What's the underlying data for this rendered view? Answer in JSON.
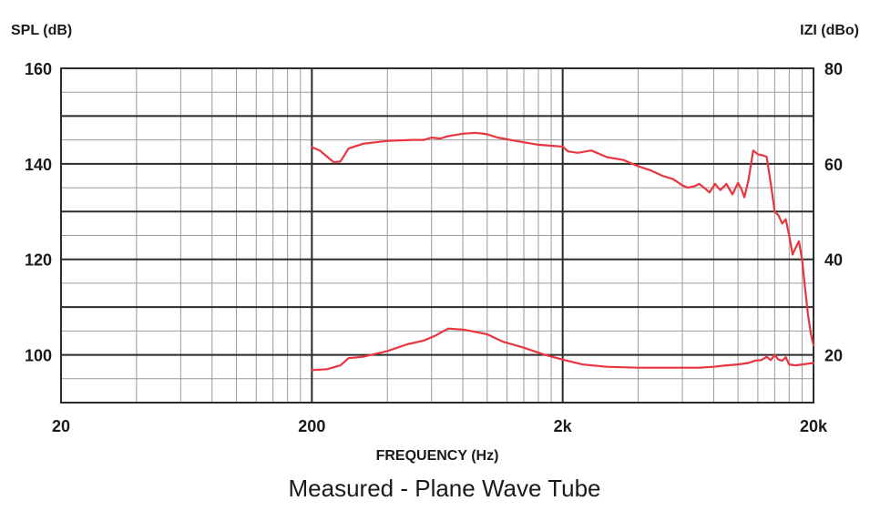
{
  "chart_data": {
    "type": "line",
    "title": "",
    "caption": "Measured - Plane Wave Tube",
    "xlabel": "FREQUENCY (Hz)",
    "ylabel_left": "SPL (dB)",
    "ylabel_right": "IZI (dBo)",
    "x_scale": "log",
    "xlim": [
      20,
      20000
    ],
    "ylim_left": [
      90,
      160
    ],
    "ylim_right": [
      10,
      80
    ],
    "x_ticks": [
      {
        "value": 20,
        "label": "20"
      },
      {
        "value": 200,
        "label": "200"
      },
      {
        "value": 2000,
        "label": "2k"
      },
      {
        "value": 20000,
        "label": "20k"
      }
    ],
    "y_ticks_left": [
      {
        "value": 160,
        "label": "160"
      },
      {
        "value": 140,
        "label": "140"
      },
      {
        "value": 120,
        "label": "120"
      },
      {
        "value": 100,
        "label": "100"
      }
    ],
    "y_ticks_right": [
      {
        "value": 80,
        "label": "80"
      },
      {
        "value": 60,
        "label": "60"
      },
      {
        "value": 40,
        "label": "40"
      },
      {
        "value": 20,
        "label": "20"
      }
    ],
    "grid": true,
    "line_color": "#e8353f",
    "series": [
      {
        "axis": "left",
        "x": [
          200,
          215,
          230,
          245,
          260,
          280,
          320,
          400,
          500,
          560,
          600,
          650,
          700,
          800,
          900,
          1000,
          1100,
          1300,
          1600,
          2000,
          2100,
          2300,
          2600,
          3000,
          3500,
          4000,
          4500,
          5000,
          5500,
          6000,
          6300,
          6700,
          7000,
          7400,
          7700,
          8100,
          8500,
          9000,
          9500,
          10000,
          10300,
          10600,
          11000,
          11500,
          12000,
          12500,
          13000,
          13500,
          14000,
          14500,
          15000,
          15500,
          16000,
          16500,
          17000,
          17500,
          18000,
          18500,
          19000,
          19500,
          20000
        ],
        "y": [
          143.5,
          142.8,
          141.5,
          140.3,
          140.5,
          143.2,
          144.2,
          144.8,
          145.0,
          145.0,
          145.5,
          145.3,
          145.8,
          146.3,
          146.5,
          146.2,
          145.5,
          144.8,
          144.0,
          143.6,
          142.6,
          142.3,
          142.8,
          141.4,
          140.8,
          139.5,
          138.6,
          137.5,
          136.8,
          135.5,
          135.0,
          135.3,
          135.8,
          134.8,
          134.0,
          135.8,
          134.5,
          135.8,
          133.6,
          136.0,
          134.8,
          133.0,
          136.5,
          142.8,
          142.0,
          141.8,
          141.5,
          136.0,
          130.0,
          129.2,
          127.5,
          128.4,
          125.0,
          121.0,
          122.5,
          123.8,
          120.0,
          114.0,
          108.5,
          104.5,
          102.0
        ]
      },
      {
        "axis": "right",
        "x": [
          200,
          230,
          260,
          280,
          320,
          400,
          480,
          560,
          620,
          700,
          800,
          900,
          1000,
          1150,
          1400,
          1700,
          2000,
          2400,
          3000,
          4000,
          5000,
          6000,
          7000,
          8000,
          9000,
          10000,
          11000,
          11700,
          12400,
          13000,
          13500,
          14000,
          14500,
          15000,
          15500,
          16000,
          17000,
          18000,
          20000
        ],
        "y": [
          16.8,
          17.0,
          17.8,
          19.3,
          19.6,
          20.8,
          22.2,
          23.0,
          24.0,
          25.5,
          25.3,
          24.8,
          24.3,
          22.8,
          21.5,
          20.0,
          19.0,
          18.0,
          17.5,
          17.3,
          17.3,
          17.3,
          17.3,
          17.5,
          17.8,
          18.0,
          18.3,
          18.8,
          18.9,
          19.6,
          18.9,
          20.0,
          19.0,
          18.8,
          19.5,
          18.0,
          17.8,
          18.0,
          18.3
        ]
      }
    ]
  }
}
